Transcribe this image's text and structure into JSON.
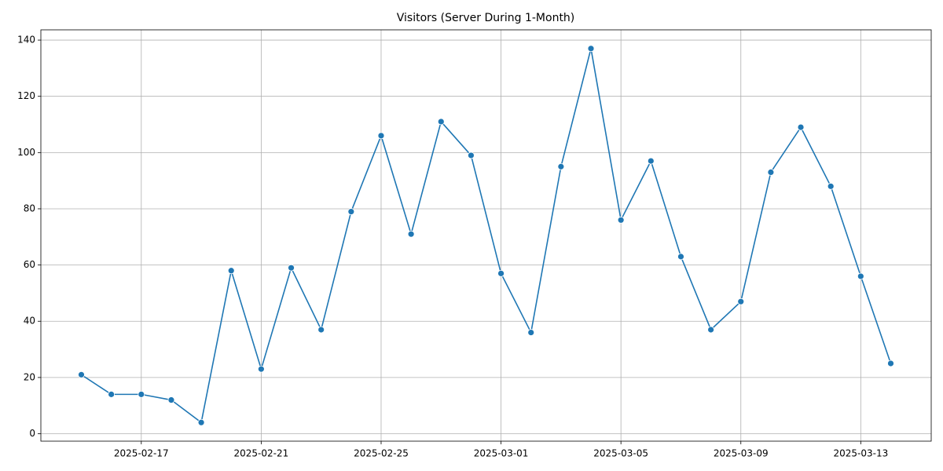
{
  "chart_data": {
    "type": "line",
    "title": "Visitors (Server During 1-Month)",
    "x": [
      "2025-02-15",
      "2025-02-16",
      "2025-02-17",
      "2025-02-18",
      "2025-02-19",
      "2025-02-20",
      "2025-02-21",
      "2025-02-22",
      "2025-02-23",
      "2025-02-24",
      "2025-02-25",
      "2025-02-26",
      "2025-02-27",
      "2025-02-28",
      "2025-03-01",
      "2025-03-02",
      "2025-03-03",
      "2025-03-04",
      "2025-03-05",
      "2025-03-06",
      "2025-03-07",
      "2025-03-08",
      "2025-03-09",
      "2025-03-10",
      "2025-03-11",
      "2025-03-12",
      "2025-03-13",
      "2025-03-14"
    ],
    "series": [
      {
        "name": "Visitors",
        "color": "#1f77b4",
        "values": [
          21,
          14,
          14,
          12,
          4,
          58,
          23,
          59,
          37,
          79,
          106,
          71,
          111,
          99,
          57,
          36,
          95,
          137,
          76,
          97,
          63,
          37,
          47,
          93,
          109,
          88,
          56,
          25
        ]
      }
    ],
    "xlim": [
      "2025-02-13T15:36",
      "2025-03-15T08:24"
    ],
    "xticks": [
      "2025-02-17",
      "2025-02-21",
      "2025-02-25",
      "2025-03-01",
      "2025-03-05",
      "2025-03-09",
      "2025-03-13"
    ],
    "ylim": [
      -2.65,
      143.65
    ],
    "yticks": [
      0,
      20,
      40,
      60,
      80,
      100,
      120,
      140
    ],
    "grid": true
  }
}
